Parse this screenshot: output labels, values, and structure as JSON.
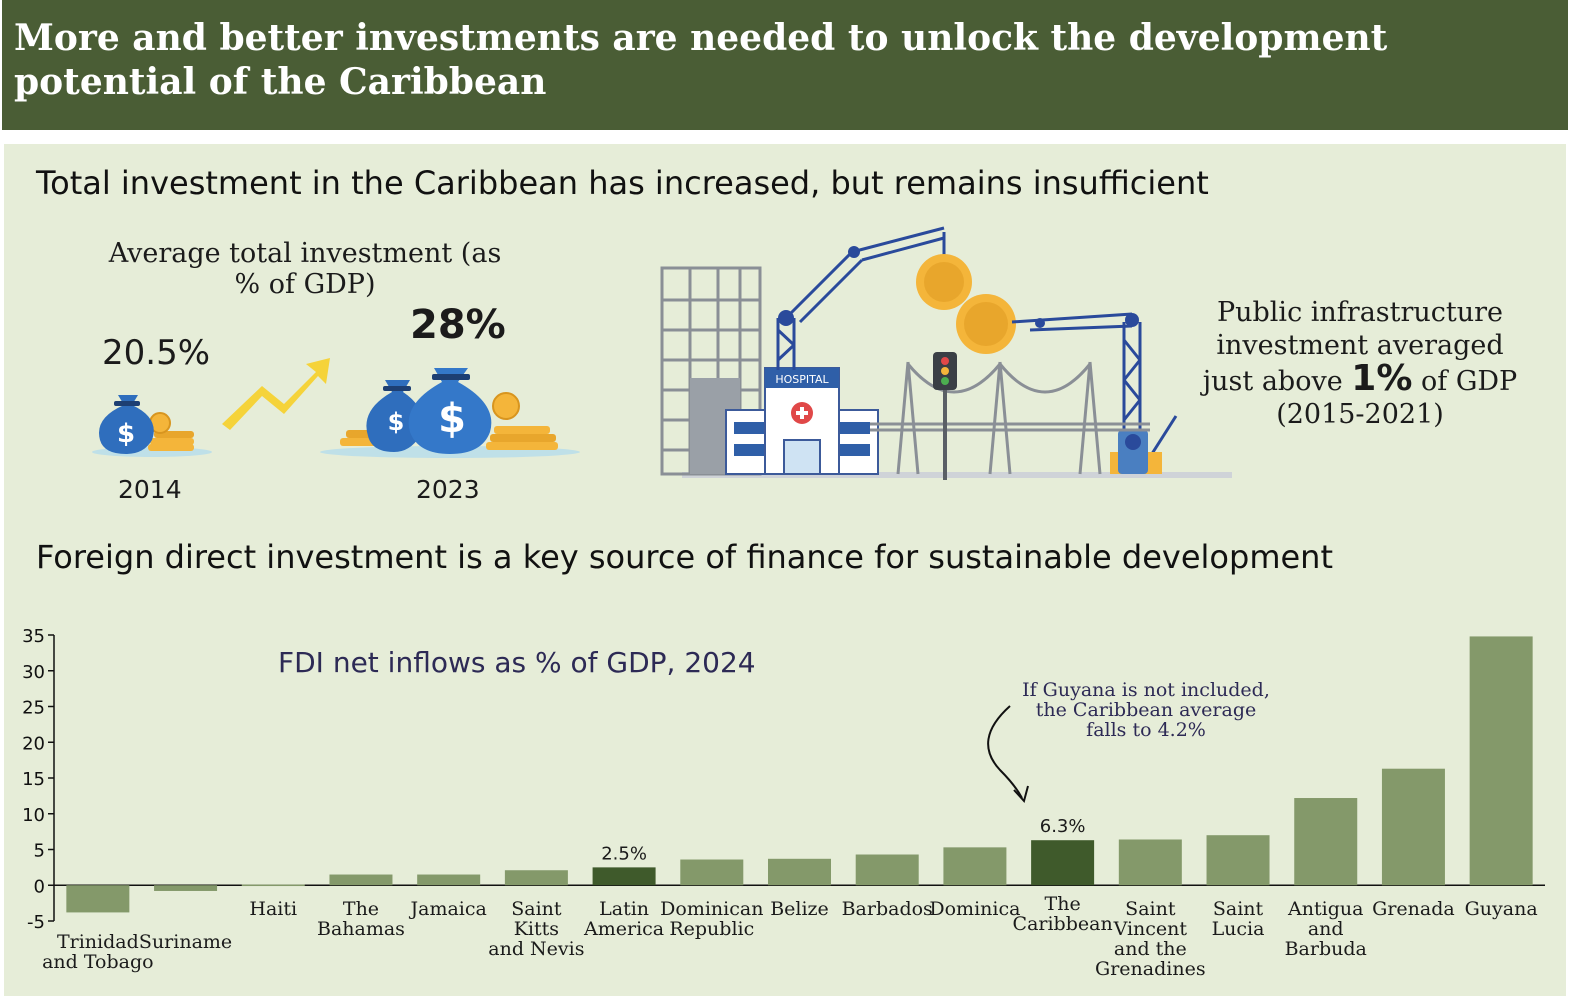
{
  "header": {
    "title": "More and better investments are needed to unlock the development potential of the Caribbean"
  },
  "section1": {
    "title": "Total investment in the Caribbean has increased, but remains insufficient",
    "avg_title": "Average total investment (as % of GDP)",
    "value_2014": "20.5%",
    "value_2023": "28%",
    "year_2014": "2014",
    "year_2023": "2023",
    "infra_line1": "Public infrastructure",
    "infra_line2": "investment averaged",
    "infra_line3_a": "just above ",
    "infra_line3_b": "1%",
    "infra_line3_c": " of GDP",
    "infra_line4": "(2015-2021)",
    "hospital_label": "HOSPITAL"
  },
  "section2": {
    "title": "Foreign direct investment is a key source of finance for sustainable development"
  },
  "colors": {
    "header_bg": "#4a5d35",
    "panel_bg": "#e6edd8",
    "bar": "#84996a",
    "bar_highlight": "#3f5a2b",
    "coin": "#f4b53a",
    "money_bag": "#2f6ebd",
    "crane": "#2a4a9b",
    "arrow": "#f5d33a"
  },
  "chart_data": {
    "type": "bar",
    "title": "FDI net inflows as % of GDP, 2024",
    "ylim": [
      -5,
      35
    ],
    "yticks": [
      "35",
      "30",
      "25",
      "20",
      "15",
      "10",
      "5",
      "0",
      "-5"
    ],
    "categories": [
      [
        "Trinidad",
        "and Tobago"
      ],
      [
        "Suriname"
      ],
      [
        "Haiti"
      ],
      [
        "The",
        "Bahamas"
      ],
      [
        "Jamaica"
      ],
      [
        "Saint",
        "Kitts",
        "and Nevis"
      ],
      [
        "Latin",
        "America"
      ],
      [
        "Dominican",
        "Republic"
      ],
      [
        "Belize"
      ],
      [
        "Barbados"
      ],
      [
        "Dominica"
      ],
      [
        "The",
        "Caribbean"
      ],
      [
        "Saint",
        "Vincent",
        "and the",
        "Grenadines"
      ],
      [
        "Saint",
        "Lucia"
      ],
      [
        "Antigua",
        "and",
        "Barbuda"
      ],
      [
        "Grenada"
      ],
      [
        "Guyana"
      ]
    ],
    "values": [
      -3.8,
      -0.8,
      0.1,
      1.5,
      1.5,
      2.1,
      2.5,
      3.6,
      3.7,
      4.3,
      5.3,
      6.3,
      6.4,
      7.0,
      12.2,
      16.3,
      34.8
    ],
    "highlighted": [
      "Latin America",
      "The Caribbean"
    ],
    "data_labels": [
      {
        "category": "Latin America",
        "text": "2.5%"
      },
      {
        "category": "The Caribbean",
        "text": "6.3%"
      }
    ],
    "annotation": "If Guyana is not included, the Caribbean average falls to 4.2%",
    "annotation_lines": [
      "If Guyana is not included,",
      "the Caribbean average",
      "falls to 4.2%"
    ],
    "grid": false,
    "legend": "none"
  }
}
